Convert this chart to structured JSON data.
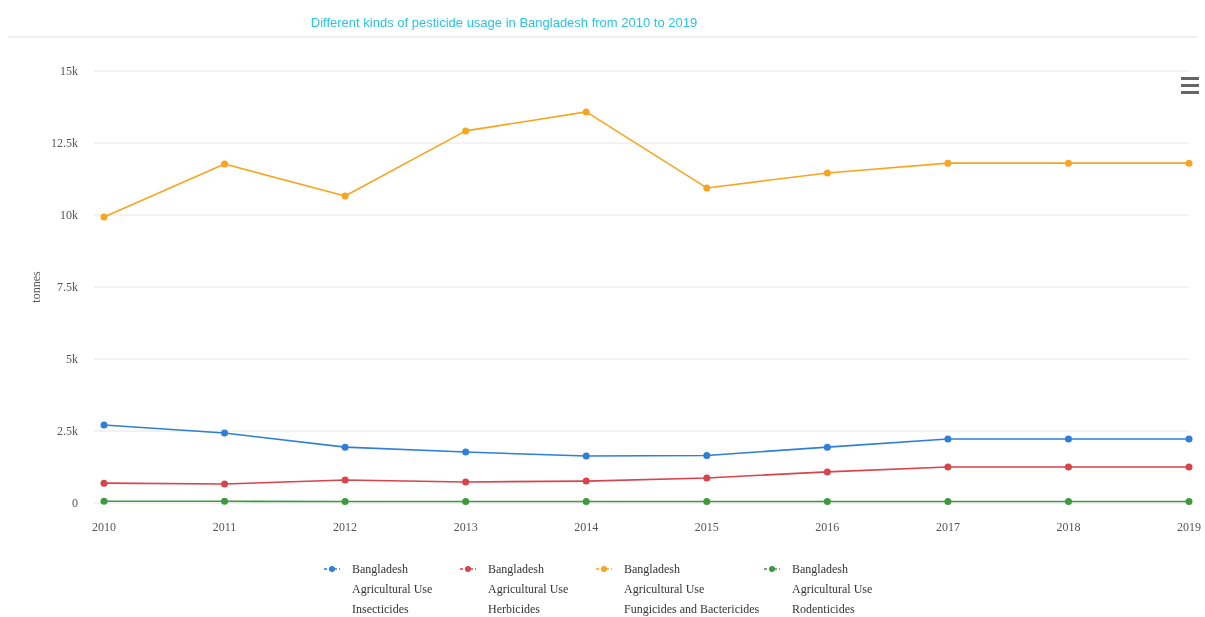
{
  "chart_data": {
    "type": "line",
    "title": "Different kinds of pesticide usage in Bangladesh from 2010 to 2019",
    "ylabel": "tonnes",
    "categories": [
      "2010",
      "2011",
      "2012",
      "2013",
      "2014",
      "2015",
      "2016",
      "2017",
      "2018",
      "2019"
    ],
    "series": [
      {
        "name": "Bangladesh Agricultural Use Insecticides",
        "color": "#2f7ed8",
        "values": [
          2710,
          2430,
          1940,
          1770,
          1630,
          1650,
          1940,
          2220,
          2220,
          2220
        ]
      },
      {
        "name": "Bangladesh Agricultural Use Herbicides",
        "color": "#d9434b",
        "values": [
          690,
          660,
          800,
          730,
          760,
          870,
          1080,
          1250,
          1250,
          1250
        ]
      },
      {
        "name": "Bangladesh Agricultural Use Fungicides and Bactericides",
        "color": "#f7a521",
        "values": [
          9930,
          11770,
          10660,
          12920,
          13580,
          10940,
          11460,
          11800,
          11800,
          11800
        ]
      },
      {
        "name": "Bangladesh Agricultural Use Rodenticides",
        "color": "#3d9a40",
        "values": [
          60,
          60,
          50,
          50,
          50,
          50,
          50,
          50,
          50,
          50
        ]
      }
    ],
    "ylim": [
      0,
      15000
    ],
    "yticks": [
      {
        "value": 0,
        "label": "0"
      },
      {
        "value": 2500,
        "label": "2.5k"
      },
      {
        "value": 5000,
        "label": "5k"
      },
      {
        "value": 7500,
        "label": "7.5k"
      },
      {
        "value": 10000,
        "label": "10k"
      },
      {
        "value": 12500,
        "label": "12.5k"
      },
      {
        "value": 15000,
        "label": "15k"
      }
    ],
    "grid": "y",
    "legend": "bottom",
    "marker": "circle",
    "line_style": "solid"
  }
}
